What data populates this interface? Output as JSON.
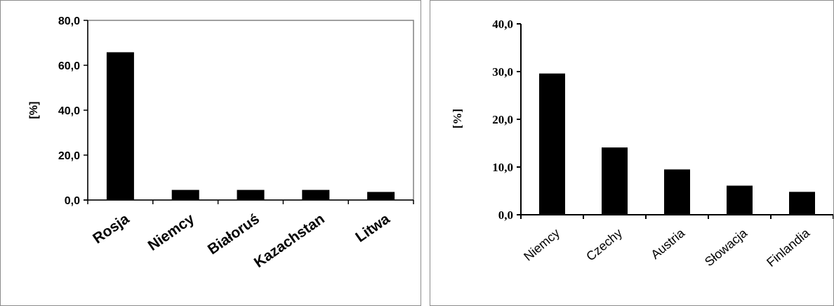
{
  "chart_data": [
    {
      "type": "bar",
      "title": "",
      "xlabel": "",
      "ylabel": "[%]",
      "ylim": [
        0,
        80
      ],
      "yticks": [
        "0,0",
        "20,0",
        "40,0",
        "60,0",
        "80,0"
      ],
      "categories": [
        "Rosja",
        "Niemcy",
        "Białoruś",
        "Kazachstan",
        "Litwa"
      ],
      "values": [
        65.8,
        4.5,
        4.5,
        4.5,
        3.6
      ],
      "bar_color": "#000000",
      "grid": false,
      "frame": true
    },
    {
      "type": "bar",
      "title": "",
      "xlabel": "",
      "ylabel": "[%]",
      "ylim": [
        0,
        40
      ],
      "yticks": [
        "0,0",
        "10,0",
        "20,0",
        "30,0",
        "40,0"
      ],
      "categories": [
        "Niemcy",
        "Czechy",
        "Austria",
        "Słowacja",
        "Finlandia"
      ],
      "values": [
        29.6,
        14.1,
        9.5,
        6.1,
        4.8
      ],
      "bar_color": "#000000",
      "grid": false,
      "frame": false
    }
  ]
}
